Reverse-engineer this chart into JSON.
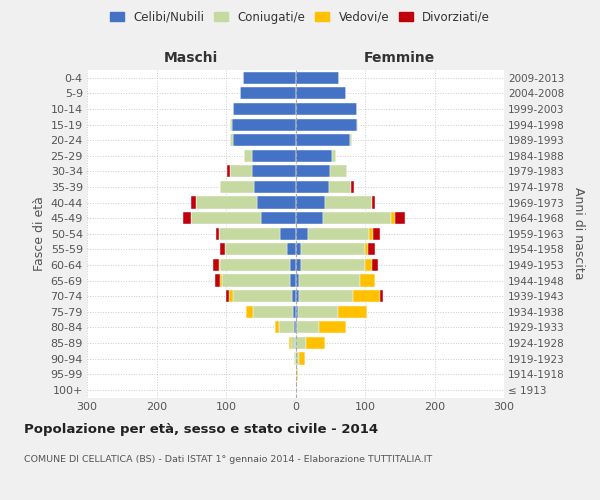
{
  "age_groups": [
    "100+",
    "95-99",
    "90-94",
    "85-89",
    "80-84",
    "75-79",
    "70-74",
    "65-69",
    "60-64",
    "55-59",
    "50-54",
    "45-49",
    "40-44",
    "35-39",
    "30-34",
    "25-29",
    "20-24",
    "15-19",
    "10-14",
    "5-9",
    "0-4"
  ],
  "birth_years": [
    "≤ 1913",
    "1914-1918",
    "1919-1923",
    "1924-1928",
    "1929-1933",
    "1934-1938",
    "1939-1943",
    "1944-1948",
    "1949-1953",
    "1954-1958",
    "1959-1963",
    "1964-1968",
    "1969-1973",
    "1974-1978",
    "1979-1983",
    "1984-1988",
    "1989-1993",
    "1994-1998",
    "1999-2003",
    "2004-2008",
    "2009-2013"
  ],
  "males": {
    "celibi": [
      0,
      0,
      0,
      1,
      2,
      3,
      5,
      8,
      8,
      12,
      22,
      50,
      55,
      60,
      62,
      62,
      90,
      92,
      90,
      80,
      75
    ],
    "coniugati": [
      0,
      0,
      2,
      6,
      22,
      58,
      85,
      98,
      100,
      90,
      88,
      100,
      88,
      48,
      32,
      12,
      4,
      2,
      0,
      0,
      0
    ],
    "vedovi": [
      0,
      0,
      0,
      2,
      6,
      10,
      5,
      2,
      2,
      0,
      0,
      0,
      0,
      0,
      0,
      0,
      0,
      0,
      0,
      0,
      0
    ],
    "divorziati": [
      0,
      0,
      0,
      0,
      0,
      0,
      5,
      8,
      8,
      6,
      5,
      12,
      8,
      0,
      4,
      0,
      0,
      0,
      0,
      0,
      0
    ]
  },
  "females": {
    "nubili": [
      0,
      0,
      0,
      1,
      2,
      3,
      5,
      5,
      8,
      8,
      18,
      40,
      42,
      48,
      50,
      52,
      78,
      88,
      88,
      72,
      62
    ],
    "coniugate": [
      0,
      2,
      5,
      14,
      32,
      58,
      78,
      88,
      92,
      92,
      88,
      98,
      68,
      32,
      24,
      6,
      4,
      2,
      0,
      0,
      0
    ],
    "vedove": [
      0,
      2,
      8,
      28,
      38,
      42,
      38,
      22,
      10,
      5,
      5,
      5,
      0,
      0,
      0,
      0,
      0,
      0,
      0,
      0,
      0
    ],
    "divorziate": [
      0,
      0,
      0,
      0,
      0,
      0,
      5,
      0,
      8,
      10,
      10,
      15,
      5,
      4,
      0,
      0,
      0,
      0,
      0,
      0,
      0
    ]
  },
  "colors": {
    "celibi": "#4472c4",
    "coniugati": "#c5d9a0",
    "vedovi": "#ffc000",
    "divorziati": "#c0000b"
  },
  "xlim": [
    -300,
    300
  ],
  "xticks": [
    -300,
    -200,
    -100,
    0,
    100,
    200,
    300
  ],
  "xticklabels": [
    "300",
    "200",
    "100",
    "0",
    "100",
    "200",
    "300"
  ],
  "title": "Popolazione per età, sesso e stato civile - 2014",
  "subtitle": "COMUNE DI CELLATICA (BS) - Dati ISTAT 1° gennaio 2014 - Elaborazione TUTTITALIA.IT",
  "ylabel_left": "Fasce di età",
  "ylabel_right": "Anni di nascita",
  "header_maschi": "Maschi",
  "header_femmine": "Femmine",
  "legend_labels": [
    "Celibi/Nubili",
    "Coniugati/e",
    "Vedovi/e",
    "Divorziati/e"
  ],
  "bg_color": "#f0f0f0",
  "plot_bg": "#ffffff"
}
